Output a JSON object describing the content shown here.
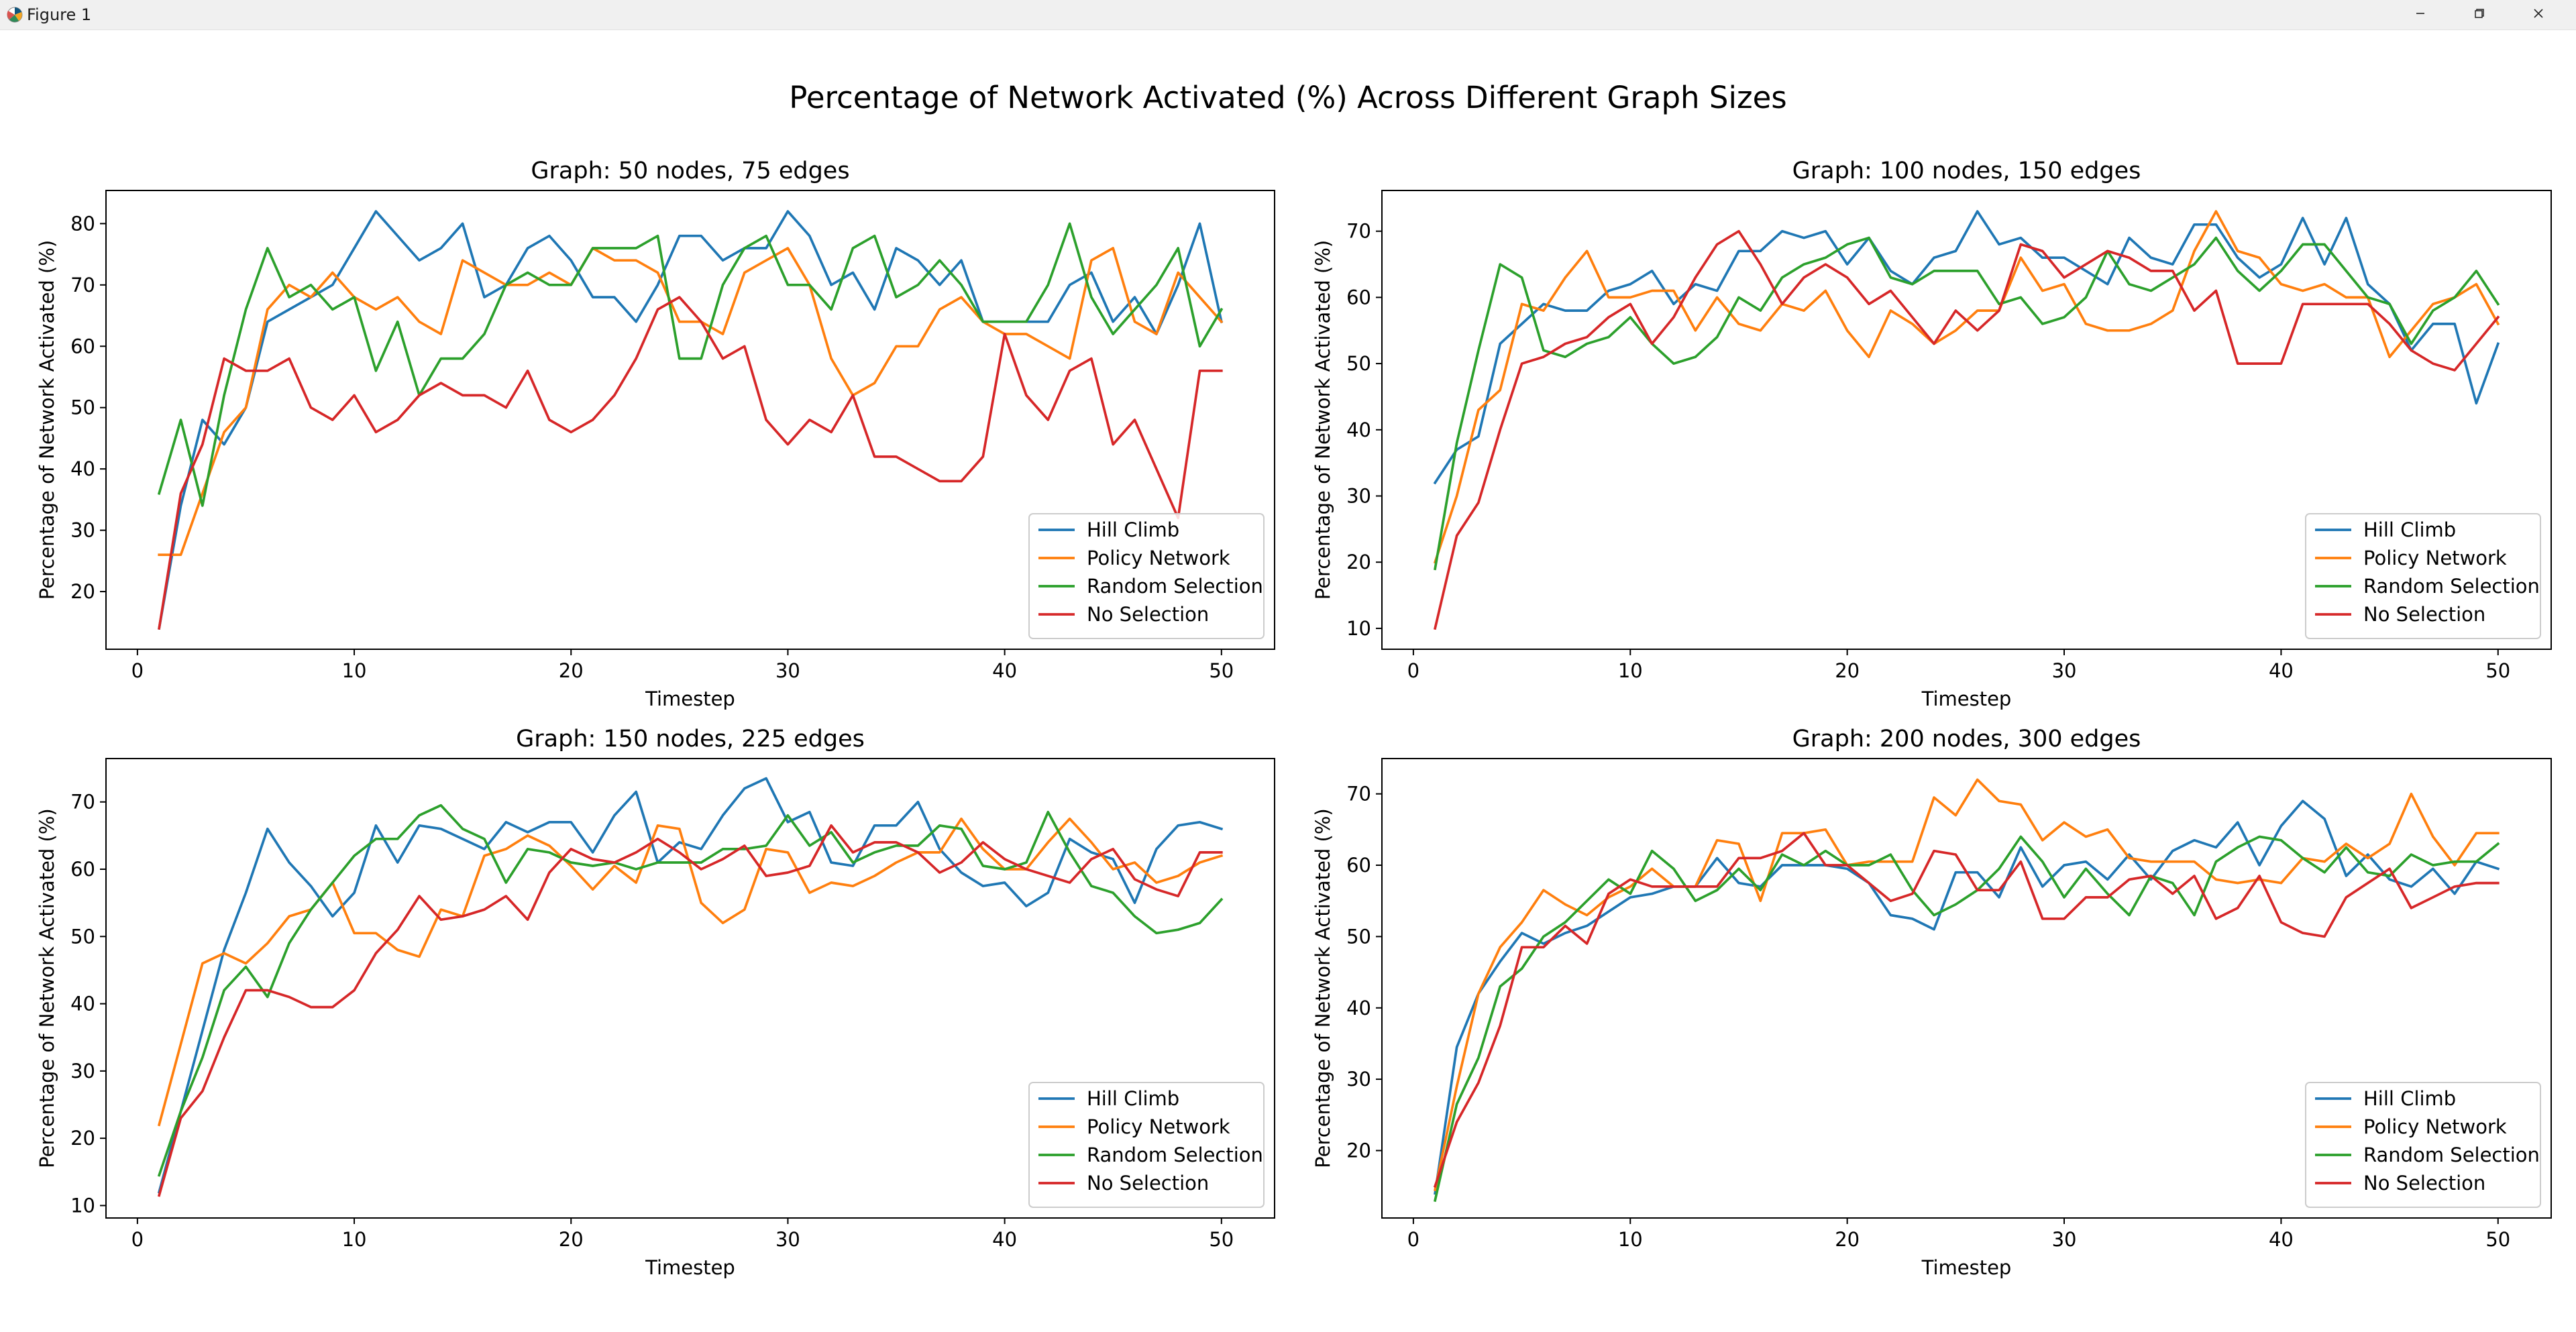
{
  "window": {
    "title": "Figure 1",
    "controls": {
      "minimize_icon": "minimize-icon",
      "maximize_icon": "maximize-icon",
      "close_icon": "close-icon"
    }
  },
  "figure": {
    "suptitle": "Percentage of Network Activated (%) Across Different Graph Sizes"
  },
  "colors": {
    "Hill Climb": "#1f77b4",
    "Policy Network": "#ff7f0e",
    "Random Selection": "#2ca02c",
    "No Selection": "#d62728"
  },
  "chart_data": [
    {
      "type": "line",
      "title": "Graph: 50 nodes, 75 edges",
      "xlabel": "Timestep",
      "ylabel": "Percentage of Network Activated (%)",
      "xlim": [
        -1.45,
        52.45
      ],
      "ylim": [
        10.6,
        85.4
      ],
      "xticks": [
        0,
        10,
        20,
        30,
        40,
        50
      ],
      "yticks": [
        20,
        30,
        40,
        50,
        60,
        70,
        80
      ],
      "grid": false,
      "legend": "lower right",
      "x": [
        1,
        2,
        3,
        4,
        5,
        6,
        7,
        8,
        9,
        10,
        11,
        12,
        13,
        14,
        15,
        16,
        17,
        18,
        19,
        20,
        21,
        22,
        23,
        24,
        25,
        26,
        27,
        28,
        29,
        30,
        31,
        32,
        33,
        34,
        35,
        36,
        37,
        38,
        39,
        40,
        41,
        42,
        43,
        44,
        45,
        46,
        47,
        48,
        49,
        50
      ],
      "series": [
        {
          "name": "Hill Climb",
          "values": [
            14,
            34,
            48,
            44,
            50,
            64,
            66,
            68,
            70,
            76,
            82,
            78,
            74,
            76,
            80,
            68,
            70,
            76,
            78,
            74,
            68,
            68,
            64,
            70,
            78,
            78,
            74,
            76,
            76,
            82,
            78,
            70,
            72,
            66,
            76,
            74,
            70,
            74,
            64,
            64,
            64,
            64,
            70,
            72,
            64,
            68,
            62,
            70,
            80,
            64
          ]
        },
        {
          "name": "Policy Network",
          "values": [
            26,
            26,
            36,
            46,
            50,
            66,
            70,
            68,
            72,
            68,
            66,
            68,
            64,
            62,
            74,
            72,
            70,
            70,
            72,
            70,
            76,
            74,
            74,
            72,
            64,
            64,
            62,
            72,
            74,
            76,
            70,
            58,
            52,
            54,
            60,
            60,
            66,
            68,
            64,
            62,
            62,
            60,
            58,
            74,
            76,
            64,
            62,
            72,
            68,
            64
          ]
        },
        {
          "name": "Random Selection",
          "values": [
            36,
            48,
            34,
            52,
            66,
            76,
            68,
            70,
            66,
            68,
            56,
            64,
            52,
            58,
            58,
            62,
            70,
            72,
            70,
            70,
            76,
            76,
            76,
            78,
            58,
            58,
            70,
            76,
            78,
            70,
            70,
            66,
            76,
            78,
            68,
            70,
            74,
            70,
            64,
            64,
            64,
            70,
            80,
            68,
            62,
            66,
            70,
            76,
            60,
            66
          ]
        },
        {
          "name": "No Selection",
          "values": [
            14,
            36,
            44,
            58,
            56,
            56,
            58,
            50,
            48,
            52,
            46,
            48,
            52,
            54,
            52,
            52,
            50,
            56,
            48,
            46,
            48,
            52,
            58,
            66,
            68,
            64,
            58,
            60,
            48,
            44,
            48,
            46,
            52,
            42,
            42,
            40,
            38,
            38,
            42,
            62,
            52,
            48,
            56,
            58,
            44,
            48,
            40,
            32,
            56,
            56
          ]
        }
      ]
    },
    {
      "type": "line",
      "title": "Graph: 100 nodes, 150 edges",
      "xlabel": "Timestep",
      "ylabel": "Percentage of Network Activated (%)",
      "xlim": [
        -1.45,
        52.45
      ],
      "ylim": [
        6.85,
        76.15
      ],
      "xticks": [
        0,
        10,
        20,
        30,
        40,
        50
      ],
      "yticks": [
        10,
        20,
        30,
        40,
        50,
        60,
        70
      ],
      "grid": false,
      "legend": "lower right",
      "x": [
        1,
        2,
        3,
        4,
        5,
        6,
        7,
        8,
        9,
        10,
        11,
        12,
        13,
        14,
        15,
        16,
        17,
        18,
        19,
        20,
        21,
        22,
        23,
        24,
        25,
        26,
        27,
        28,
        29,
        30,
        31,
        32,
        33,
        34,
        35,
        36,
        37,
        38,
        39,
        40,
        41,
        42,
        43,
        44,
        45,
        46,
        47,
        48,
        49,
        50
      ],
      "series": [
        {
          "name": "Hill Climb",
          "values": [
            32,
            37,
            39,
            53,
            56,
            59,
            58,
            58,
            61,
            62,
            64,
            59,
            62,
            61,
            67,
            67,
            70,
            69,
            70,
            65,
            69,
            64,
            62,
            66,
            67,
            73,
            68,
            69,
            66,
            66,
            64,
            62,
            69,
            66,
            65,
            71,
            71,
            66,
            63,
            65,
            72,
            65,
            72,
            62,
            59,
            52,
            56,
            56,
            44,
            53
          ]
        },
        {
          "name": "Policy Network",
          "values": [
            20,
            30,
            43,
            46,
            59,
            58,
            63,
            67,
            60,
            60,
            61,
            61,
            55,
            60,
            56,
            55,
            59,
            58,
            61,
            55,
            51,
            58,
            56,
            53,
            55,
            58,
            58,
            66,
            61,
            62,
            56,
            55,
            55,
            56,
            58,
            67,
            73,
            67,
            66,
            62,
            61,
            62,
            60,
            60,
            51,
            55,
            59,
            60,
            62,
            56
          ]
        },
        {
          "name": "Random Selection",
          "values": [
            19,
            38,
            52,
            65,
            63,
            52,
            51,
            53,
            54,
            57,
            53,
            50,
            51,
            54,
            60,
            58,
            63,
            65,
            66,
            68,
            69,
            63,
            62,
            64,
            64,
            64,
            59,
            60,
            56,
            57,
            60,
            67,
            62,
            61,
            63,
            65,
            69,
            64,
            61,
            64,
            68,
            68,
            64,
            60,
            59,
            53,
            58,
            60,
            64,
            59
          ]
        },
        {
          "name": "No Selection",
          "values": [
            10,
            24,
            29,
            40,
            50,
            51,
            53,
            54,
            57,
            59,
            53,
            57,
            63,
            68,
            70,
            65,
            59,
            63,
            65,
            63,
            59,
            61,
            57,
            53,
            58,
            55,
            58,
            68,
            67,
            63,
            65,
            67,
            66,
            64,
            64,
            58,
            61,
            50,
            50,
            50,
            59,
            59,
            59,
            59,
            56,
            52,
            50,
            49,
            53,
            57
          ]
        }
      ]
    },
    {
      "type": "line",
      "title": "Graph: 150 nodes, 225 edges",
      "xlabel": "Timestep",
      "ylabel": "Percentage of Network Activated (%)",
      "xlim": [
        -1.45,
        52.45
      ],
      "ylim": [
        8.15,
        76.45
      ],
      "xticks": [
        0,
        10,
        20,
        30,
        40,
        50
      ],
      "yticks": [
        10,
        20,
        30,
        40,
        50,
        60,
        70
      ],
      "grid": false,
      "legend": "lower right",
      "x": [
        1,
        2,
        3,
        4,
        5,
        6,
        7,
        8,
        9,
        10,
        11,
        12,
        13,
        14,
        15,
        16,
        17,
        18,
        19,
        20,
        21,
        22,
        23,
        24,
        25,
        26,
        27,
        28,
        29,
        30,
        31,
        32,
        33,
        34,
        35,
        36,
        37,
        38,
        39,
        40,
        41,
        42,
        43,
        44,
        45,
        46,
        47,
        48,
        49,
        50
      ],
      "series": [
        {
          "name": "Hill Climb",
          "values": [
            12,
            24,
            36,
            48,
            56.5,
            66,
            61,
            57.5,
            53,
            56.5,
            66.5,
            61,
            66.5,
            66,
            64.5,
            63,
            67,
            65.5,
            67,
            67,
            62.5,
            68,
            71.5,
            61,
            64,
            63,
            68,
            72,
            73.5,
            67,
            68.5,
            61,
            60.5,
            66.5,
            66.5,
            70,
            63,
            59.5,
            57.5,
            58,
            54.5,
            56.5,
            64.5,
            62.5,
            61.5,
            55,
            63,
            66.5,
            67,
            66
          ]
        },
        {
          "name": "Policy Network",
          "values": [
            22,
            34,
            46,
            47.5,
            46,
            49,
            53,
            54,
            58,
            50.5,
            50.5,
            48,
            47,
            54,
            53,
            62,
            63,
            65,
            63.5,
            60.5,
            57,
            60.5,
            58,
            66.5,
            66,
            55,
            52,
            54,
            63,
            62.5,
            56.5,
            58,
            57.5,
            59,
            61,
            62.5,
            62.5,
            67.5,
            63,
            60,
            60,
            64,
            67.5,
            64,
            60,
            61,
            58,
            59,
            61,
            62
          ]
        },
        {
          "name": "Random Selection",
          "values": [
            14.5,
            24,
            32,
            42,
            45.5,
            41,
            49,
            54,
            58,
            62,
            64.5,
            64.5,
            68,
            69.5,
            66,
            64.5,
            58,
            63,
            62.5,
            61,
            60.5,
            61,
            60,
            61,
            61,
            61,
            63,
            63,
            63.5,
            68,
            63.5,
            65.5,
            61,
            62.5,
            63.5,
            63.5,
            66.5,
            66,
            60.5,
            60,
            61,
            68.5,
            62.5,
            57.5,
            56.5,
            53,
            50.5,
            51,
            52,
            55.5
          ]
        },
        {
          "name": "No Selection",
          "values": [
            11.5,
            23,
            27,
            35,
            42,
            42,
            41,
            39.5,
            39.5,
            42,
            47.5,
            51,
            56,
            52.5,
            53,
            54,
            56,
            52.5,
            59.5,
            63,
            61.5,
            61,
            62.5,
            64.5,
            62.5,
            60,
            61.5,
            63.5,
            59,
            59.5,
            60.5,
            66.5,
            62.5,
            64,
            64,
            62.5,
            59.5,
            61,
            64,
            61.5,
            60,
            59,
            58,
            61.5,
            63,
            58.5,
            57,
            56,
            62.5,
            62.5
          ]
        }
      ]
    },
    {
      "type": "line",
      "title": "Graph: 200 nodes, 300 edges",
      "xlabel": "Timestep",
      "ylabel": "Percentage of Network Activated (%)",
      "xlim": [
        -1.45,
        52.45
      ],
      "ylim": [
        10.55,
        74.95
      ],
      "xticks": [
        0,
        10,
        20,
        30,
        40,
        50
      ],
      "yticks": [
        20,
        30,
        40,
        50,
        60,
        70
      ],
      "grid": false,
      "legend": "lower right",
      "x": [
        1,
        2,
        3,
        4,
        5,
        6,
        7,
        8,
        9,
        10,
        11,
        12,
        13,
        14,
        15,
        16,
        17,
        18,
        19,
        20,
        21,
        22,
        23,
        24,
        25,
        26,
        27,
        28,
        29,
        30,
        31,
        32,
        33,
        34,
        35,
        36,
        37,
        38,
        39,
        40,
        41,
        42,
        43,
        44,
        45,
        46,
        47,
        48,
        49,
        50
      ],
      "series": [
        {
          "name": "Hill Climb",
          "values": [
            14,
            34.5,
            42,
            46.5,
            50.5,
            49,
            50.5,
            51.5,
            53.5,
            55.5,
            56,
            57,
            57,
            61,
            57.5,
            57,
            60,
            60,
            60,
            59.5,
            57.5,
            53,
            52.5,
            51,
            59,
            59,
            55.5,
            62.5,
            57,
            60,
            60.5,
            58,
            61.5,
            58,
            62,
            63.5,
            62.5,
            66,
            60,
            65.5,
            69,
            66.5,
            58.5,
            61.5,
            58,
            57,
            59.5,
            56,
            60.5,
            59.5
          ]
        },
        {
          "name": "Policy Network",
          "values": [
            14.5,
            29,
            42,
            48.5,
            52,
            56.5,
            54.5,
            53,
            55.5,
            57,
            59.5,
            57,
            57,
            63.5,
            63,
            55,
            64.5,
            64.5,
            65,
            60,
            60.5,
            60.5,
            60.5,
            69.5,
            67,
            72,
            69,
            68.5,
            63.5,
            66,
            64,
            65,
            61,
            60.5,
            60.5,
            60.5,
            58,
            57.5,
            58,
            57.5,
            61,
            60.5,
            63,
            61,
            63,
            70,
            64,
            60,
            64.5,
            64.5
          ]
        },
        {
          "name": "Random Selection",
          "values": [
            13,
            26.5,
            33,
            43,
            45.5,
            50,
            52,
            55,
            58,
            56,
            62,
            59.5,
            55,
            56.5,
            59.5,
            56.5,
            61.5,
            60,
            62,
            60,
            60,
            61.5,
            56.5,
            53,
            54.5,
            56.5,
            59.5,
            64,
            60.5,
            55.5,
            59.5,
            56,
            53,
            58.5,
            57.5,
            53,
            60.5,
            62.5,
            64,
            63.5,
            61,
            59,
            62.5,
            59,
            58.5,
            61.5,
            60,
            60.5,
            60.5,
            63
          ]
        },
        {
          "name": "No Selection",
          "values": [
            15,
            24,
            29.5,
            37.5,
            48.5,
            48.5,
            51.5,
            49,
            56,
            58,
            57,
            57,
            57,
            57,
            61,
            61,
            62,
            64.5,
            60,
            60,
            57.5,
            55,
            56,
            62,
            61.5,
            56.5,
            56.5,
            60.5,
            52.5,
            52.5,
            55.5,
            55.5,
            58,
            58.5,
            56,
            58.5,
            52.5,
            54,
            58.5,
            52,
            50.5,
            50,
            55.5,
            57.5,
            59.5,
            54,
            55.5,
            57,
            57.5,
            57.5
          ]
        }
      ]
    }
  ]
}
